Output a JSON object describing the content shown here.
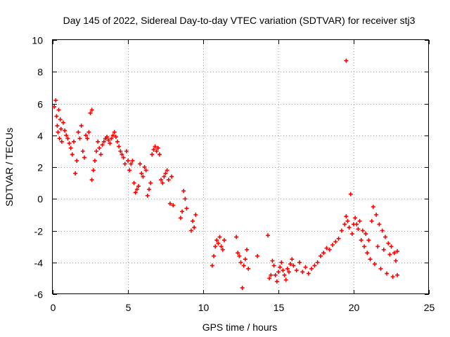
{
  "chart_data": {
    "type": "scatter",
    "title": "Day 145 of 2022, Sidereal Day-to-day VTEC variation (SDTVAR) for receiver stj3",
    "xlabel": "GPS time / hours",
    "ylabel": "SDTVAR / TECUs",
    "xlim": [
      0,
      25
    ],
    "ylim": [
      -6,
      10
    ],
    "xticks": [
      0,
      5,
      10,
      15,
      20,
      25
    ],
    "yticks": [
      -6,
      -4,
      -2,
      0,
      2,
      4,
      6,
      8,
      10
    ],
    "grid": true,
    "marker": "+",
    "color": "#ff0000",
    "series": [
      {
        "name": "stj3",
        "points": [
          [
            0.1,
            5.8
          ],
          [
            0.2,
            6.2
          ],
          [
            0.25,
            5.2
          ],
          [
            0.3,
            4.6
          ],
          [
            0.35,
            4.2
          ],
          [
            0.4,
            5.6
          ],
          [
            0.45,
            3.8
          ],
          [
            0.5,
            5.0
          ],
          [
            0.55,
            4.4
          ],
          [
            0.6,
            3.6
          ],
          [
            0.7,
            4.8
          ],
          [
            0.8,
            4.3
          ],
          [
            0.9,
            4.0
          ],
          [
            1.0,
            3.8
          ],
          [
            1.1,
            3.5
          ],
          [
            1.2,
            3.2
          ],
          [
            1.3,
            2.8
          ],
          [
            1.4,
            3.6
          ],
          [
            1.5,
            1.6
          ],
          [
            1.6,
            2.4
          ],
          [
            1.7,
            4.2
          ],
          [
            1.8,
            3.8
          ],
          [
            1.9,
            4.6
          ],
          [
            2.0,
            3.0
          ],
          [
            2.1,
            2.6
          ],
          [
            2.2,
            4.0
          ],
          [
            2.3,
            3.8
          ],
          [
            2.4,
            4.2
          ],
          [
            2.5,
            5.4
          ],
          [
            2.6,
            5.6
          ],
          [
            2.6,
            1.2
          ],
          [
            2.7,
            1.8
          ],
          [
            2.8,
            2.4
          ],
          [
            2.9,
            3.0
          ],
          [
            3.0,
            3.6
          ],
          [
            3.1,
            3.2
          ],
          [
            3.2,
            2.8
          ],
          [
            3.3,
            3.4
          ],
          [
            3.4,
            3.6
          ],
          [
            3.5,
            3.8
          ],
          [
            3.6,
            3.9
          ],
          [
            3.7,
            3.7
          ],
          [
            3.8,
            3.5
          ],
          [
            3.9,
            3.8
          ],
          [
            4.0,
            4.0
          ],
          [
            4.1,
            4.2
          ],
          [
            4.2,
            3.9
          ],
          [
            4.3,
            3.6
          ],
          [
            4.4,
            3.3
          ],
          [
            4.5,
            3.0
          ],
          [
            4.6,
            2.8
          ],
          [
            4.7,
            2.6
          ],
          [
            4.8,
            2.2
          ],
          [
            4.9,
            3.0
          ],
          [
            5.0,
            2.4
          ],
          [
            5.1,
            1.8
          ],
          [
            5.2,
            2.2
          ],
          [
            5.3,
            2.4
          ],
          [
            5.4,
            1.0
          ],
          [
            5.5,
            0.4
          ],
          [
            5.6,
            0.6
          ],
          [
            5.7,
            0.8
          ],
          [
            5.8,
            2.2
          ],
          [
            5.9,
            1.6
          ],
          [
            6.0,
            1.4
          ],
          [
            6.1,
            2.0
          ],
          [
            6.2,
            1.8
          ],
          [
            6.3,
            0.2
          ],
          [
            6.4,
            0.6
          ],
          [
            6.5,
            1.0
          ],
          [
            6.6,
            2.8
          ],
          [
            6.7,
            3.1
          ],
          [
            6.8,
            3.3
          ],
          [
            6.9,
            3.0
          ],
          [
            7.0,
            3.2
          ],
          [
            7.1,
            2.8
          ],
          [
            7.2,
            1.2
          ],
          [
            7.3,
            1.0
          ],
          [
            7.4,
            1.4
          ],
          [
            7.5,
            1.6
          ],
          [
            7.6,
            1.8
          ],
          [
            7.7,
            1.2
          ],
          [
            7.8,
            -0.3
          ],
          [
            7.9,
            1.4
          ],
          [
            8.0,
            -0.4
          ],
          [
            8.5,
            -1.2
          ],
          [
            8.6,
            -0.8
          ],
          [
            8.7,
            0.5
          ],
          [
            8.8,
            0.0
          ],
          [
            8.9,
            -0.6
          ],
          [
            9.2,
            -2.0
          ],
          [
            9.3,
            -1.4
          ],
          [
            9.4,
            -1.8
          ],
          [
            9.5,
            -1.0
          ],
          [
            10.6,
            -4.2
          ],
          [
            10.7,
            -3.6
          ],
          [
            10.8,
            -3.0
          ],
          [
            10.9,
            -2.6
          ],
          [
            11.0,
            -2.8
          ],
          [
            11.1,
            -2.4
          ],
          [
            11.2,
            -3.0
          ],
          [
            11.3,
            -3.2
          ],
          [
            11.4,
            -2.6
          ],
          [
            12.2,
            -2.4
          ],
          [
            12.3,
            -3.4
          ],
          [
            12.4,
            -3.6
          ],
          [
            12.5,
            -4.0
          ],
          [
            12.6,
            -5.6
          ],
          [
            12.7,
            -4.2
          ],
          [
            12.8,
            -3.8
          ],
          [
            12.9,
            -3.2
          ],
          [
            13.0,
            -4.4
          ],
          [
            13.6,
            -3.6
          ],
          [
            14.3,
            -2.3
          ],
          [
            14.4,
            -5.0
          ],
          [
            14.5,
            -4.8
          ],
          [
            14.6,
            -3.9
          ],
          [
            14.7,
            -4.2
          ],
          [
            14.8,
            -4.8
          ],
          [
            14.9,
            -5.2
          ],
          [
            15.0,
            -4.6
          ],
          [
            15.1,
            -4.3
          ],
          [
            15.2,
            -4.0
          ],
          [
            15.3,
            -4.5
          ],
          [
            15.4,
            -4.8
          ],
          [
            15.5,
            -5.1
          ],
          [
            15.6,
            -4.4
          ],
          [
            15.7,
            -4.6
          ],
          [
            15.8,
            -4.1
          ],
          [
            15.9,
            -3.8
          ],
          [
            16.0,
            -4.2
          ],
          [
            16.2,
            -4.5
          ],
          [
            16.4,
            -4.0
          ],
          [
            16.6,
            -4.6
          ],
          [
            16.8,
            -4.3
          ],
          [
            17.0,
            -4.7
          ],
          [
            17.2,
            -4.4
          ],
          [
            17.4,
            -4.2
          ],
          [
            17.6,
            -4.0
          ],
          [
            17.8,
            -3.6
          ],
          [
            18.0,
            -3.4
          ],
          [
            18.2,
            -3.1
          ],
          [
            18.4,
            -3.2
          ],
          [
            18.6,
            -2.9
          ],
          [
            18.8,
            -2.7
          ],
          [
            19.0,
            -2.5
          ],
          [
            19.2,
            -2.0
          ],
          [
            19.4,
            -1.6
          ],
          [
            19.5,
            -1.1
          ],
          [
            19.5,
            8.7
          ],
          [
            19.6,
            -1.4
          ],
          [
            19.7,
            -1.8
          ],
          [
            19.8,
            0.3
          ],
          [
            19.9,
            -2.2
          ],
          [
            20.0,
            -1.6
          ],
          [
            20.1,
            -1.2
          ],
          [
            20.2,
            -1.6
          ],
          [
            20.3,
            -1.9
          ],
          [
            20.4,
            -1.4
          ],
          [
            20.5,
            -2.6
          ],
          [
            20.6,
            -2.0
          ],
          [
            20.7,
            -3.0
          ],
          [
            20.8,
            -2.2
          ],
          [
            20.9,
            -3.4
          ],
          [
            21.0,
            -2.6
          ],
          [
            21.1,
            -3.8
          ],
          [
            21.2,
            -1.4
          ],
          [
            21.3,
            -0.5
          ],
          [
            21.4,
            -4.1
          ],
          [
            21.5,
            -1.0
          ],
          [
            21.6,
            -3.0
          ],
          [
            21.7,
            -1.6
          ],
          [
            21.8,
            -4.4
          ],
          [
            21.9,
            -2.0
          ],
          [
            22.0,
            -3.2
          ],
          [
            22.1,
            -2.4
          ],
          [
            22.2,
            -4.7
          ],
          [
            22.3,
            -2.8
          ],
          [
            22.4,
            -3.5
          ],
          [
            22.5,
            -3.0
          ],
          [
            22.6,
            -4.9
          ],
          [
            22.7,
            -3.4
          ],
          [
            22.8,
            -3.9
          ],
          [
            22.9,
            -3.3
          ],
          [
            22.9,
            -4.8
          ]
        ]
      }
    ]
  }
}
